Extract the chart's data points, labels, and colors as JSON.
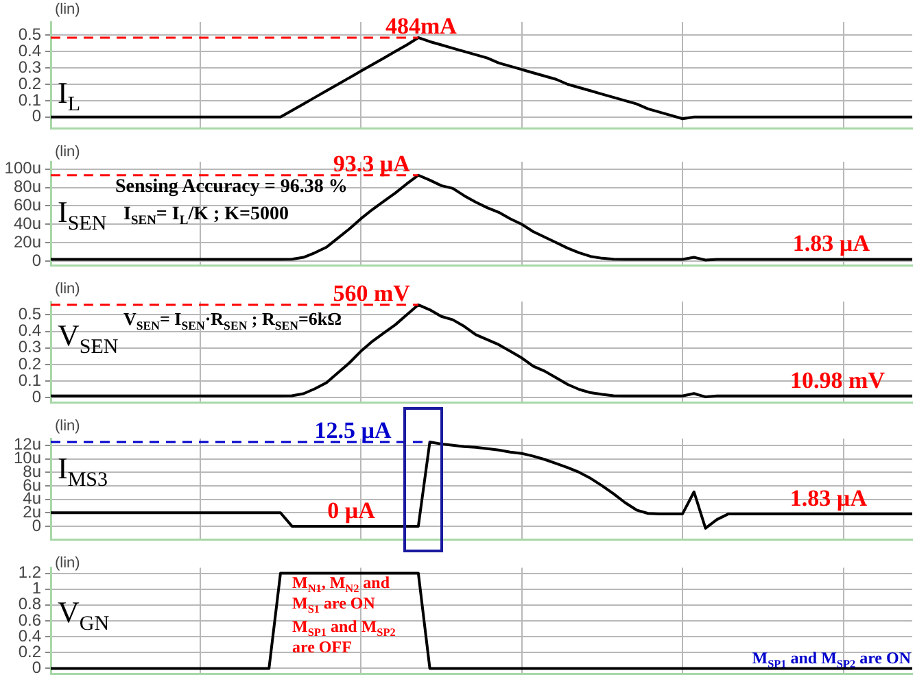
{
  "chart_data": [
    {
      "type": "line",
      "ylabel": "I$_{L}$",
      "categories": [
        null,
        null,
        null,
        null,
        null,
        null,
        null,
        null,
        null,
        null,
        null,
        null,
        null,
        null,
        null,
        null,
        null,
        null,
        null,
        null,
        null,
        null,
        null,
        null,
        null,
        null,
        null,
        null,
        null,
        null,
        null,
        null,
        null,
        null,
        null,
        null,
        null,
        null,
        null,
        null,
        null,
        null,
        null,
        null,
        null,
        null,
        null,
        null,
        null,
        null,
        null,
        null,
        null,
        null,
        null,
        null,
        null,
        null,
        null,
        null,
        null,
        null,
        null,
        null,
        null,
        null,
        null,
        null,
        null,
        null,
        null,
        null,
        null,
        null,
        null,
        null
      ],
      "series": [
        {
          "color": "#000000",
          "values": [
            0,
            0,
            0,
            0,
            0,
            0,
            0,
            0,
            0,
            0,
            0,
            0,
            0,
            0,
            0,
            0,
            0,
            0,
            0,
            0,
            0,
            0.04,
            0.08,
            0.12,
            0.16,
            0.2,
            0.24,
            0.28,
            0.32,
            0.36,
            0.4,
            0.44,
            0.484,
            0.46,
            0.44,
            0.42,
            0.4,
            0.38,
            0.36,
            0.33,
            0.31,
            0.29,
            0.27,
            0.25,
            0.23,
            0.2,
            0.18,
            0.16,
            0.14,
            0.12,
            0.1,
            0.08,
            0.05,
            0.03,
            0.01,
            -0.01,
            0,
            0,
            0,
            0,
            0,
            0,
            0,
            0,
            0,
            0,
            0,
            0,
            0,
            0,
            0,
            0,
            0,
            0,
            0,
            0
          ]
        }
      ],
      "ylim": [
        -0.07,
        0.58
      ],
      "yticks": [
        0,
        0.1,
        0.2,
        0.3,
        0.4,
        0.5
      ],
      "tick_labels": "y",
      "grid": true,
      "legend": false,
      "marker": "none",
      "line_style": "solid",
      "ref_lines": [
        {
          "axis": "y",
          "value": 0.484,
          "label": "484mA",
          "color": "#ff0000",
          "line_style": "dashed"
        }
      ],
      "annotations": [
        "(lin)"
      ]
    },
    {
      "type": "line",
      "ylabel": "I$_{SEN}$",
      "categories": [
        null,
        null,
        null,
        null,
        null,
        null,
        null,
        null,
        null,
        null,
        null,
        null,
        null,
        null,
        null,
        null,
        null,
        null,
        null,
        null,
        null,
        null,
        null,
        null,
        null,
        null,
        null,
        null,
        null,
        null,
        null,
        null,
        null,
        null,
        null,
        null,
        null,
        null,
        null,
        null,
        null,
        null,
        null,
        null,
        null,
        null,
        null,
        null,
        null,
        null,
        null,
        null,
        null,
        null,
        null,
        null,
        null,
        null,
        null,
        null,
        null,
        null,
        null,
        null,
        null,
        null,
        null,
        null,
        null,
        null,
        null,
        null,
        null,
        null,
        null,
        null
      ],
      "series": [
        {
          "color": "#000000",
          "values": [
            1.83,
            1.83,
            1.83,
            1.83,
            1.83,
            1.83,
            1.83,
            1.83,
            1.83,
            1.83,
            1.83,
            1.83,
            1.83,
            1.83,
            1.83,
            1.83,
            1.83,
            1.83,
            1.83,
            1.83,
            1.83,
            2,
            4,
            9,
            15,
            25,
            35,
            46,
            56,
            65,
            74,
            84,
            93.3,
            88,
            82,
            79,
            71,
            64,
            58,
            53,
            46,
            40,
            32,
            26,
            20,
            14,
            9,
            5,
            3,
            2,
            1.83,
            1.83,
            1.83,
            1.83,
            1.83,
            1.83,
            4,
            1,
            1.83,
            1.83,
            1.83,
            1.83,
            1.83,
            1.83,
            1.83,
            1.83,
            1.83,
            1.83,
            1.83,
            1.83,
            1.83,
            1.83,
            1.83,
            1.83,
            1.83,
            1.83
          ]
        }
      ],
      "ylim": [
        -5,
        108
      ],
      "yticks": [
        {
          "value": 0,
          "label": "0"
        },
        {
          "value": 20,
          "label": "20u"
        },
        {
          "value": 40,
          "label": "40u"
        },
        {
          "value": 60,
          "label": "60u"
        },
        {
          "value": 80,
          "label": "80u"
        },
        {
          "value": 100,
          "label": "100u"
        }
      ],
      "tick_labels": "y",
      "grid": true,
      "legend": false,
      "marker": "none",
      "line_style": "solid",
      "ref_lines": [
        {
          "axis": "y",
          "value": 93.3,
          "label": "93.3 µA",
          "color": "#ff0000",
          "line_style": "dashed"
        }
      ],
      "annotations": [
        "(lin)",
        "Sensing Accuracy = 96.38 %",
        "I$_{SEN}$= I$_{L}$/K ; K=5000",
        {
          "text": "1.83 µA",
          "y": 1.83
        }
      ]
    },
    {
      "type": "line",
      "ylabel": "V$_{SEN}$",
      "categories": [
        null,
        null,
        null,
        null,
        null,
        null,
        null,
        null,
        null,
        null,
        null,
        null,
        null,
        null,
        null,
        null,
        null,
        null,
        null,
        null,
        null,
        null,
        null,
        null,
        null,
        null,
        null,
        null,
        null,
        null,
        null,
        null,
        null,
        null,
        null,
        null,
        null,
        null,
        null,
        null,
        null,
        null,
        null,
        null,
        null,
        null,
        null,
        null,
        null,
        null,
        null,
        null,
        null,
        null,
        null,
        null,
        null,
        null,
        null,
        null,
        null,
        null,
        null,
        null,
        null,
        null,
        null,
        null,
        null,
        null,
        null,
        null,
        null,
        null,
        null,
        null
      ],
      "series": [
        {
          "color": "#000000",
          "values": [
            0.011,
            0.011,
            0.011,
            0.011,
            0.011,
            0.011,
            0.011,
            0.011,
            0.011,
            0.011,
            0.011,
            0.011,
            0.011,
            0.011,
            0.011,
            0.011,
            0.011,
            0.011,
            0.011,
            0.011,
            0.011,
            0.012,
            0.024,
            0.054,
            0.09,
            0.15,
            0.21,
            0.28,
            0.34,
            0.39,
            0.44,
            0.5,
            0.56,
            0.53,
            0.49,
            0.47,
            0.43,
            0.38,
            0.35,
            0.32,
            0.28,
            0.24,
            0.19,
            0.16,
            0.12,
            0.08,
            0.05,
            0.03,
            0.02,
            0.012,
            0.011,
            0.011,
            0.011,
            0.011,
            0.011,
            0.011,
            0.025,
            0.005,
            0.011,
            0.011,
            0.011,
            0.011,
            0.011,
            0.011,
            0.011,
            0.011,
            0.011,
            0.011,
            0.011,
            0.011,
            0.011,
            0.011,
            0.011,
            0.011,
            0.011,
            0.011
          ]
        }
      ],
      "ylim": [
        -0.03,
        0.58
      ],
      "yticks": [
        0,
        0.1,
        0.2,
        0.3,
        0.4,
        0.5
      ],
      "tick_labels": "y",
      "grid": true,
      "legend": false,
      "marker": "none",
      "line_style": "solid",
      "ref_lines": [
        {
          "axis": "y",
          "value": 0.56,
          "label": "560 mV",
          "color": "#ff0000",
          "line_style": "dashed"
        }
      ],
      "annotations": [
        "(lin)",
        "V$_{SEN}$= I$_{SEN}$·R$_{SEN}$ ; R$_{SEN}$=6kΩ",
        {
          "text": "10.98 mV",
          "y": 0.011
        }
      ]
    },
    {
      "type": "line",
      "ylabel": "I$_{MS3}$",
      "categories": [
        null,
        null,
        null,
        null,
        null,
        null,
        null,
        null,
        null,
        null,
        null,
        null,
        null,
        null,
        null,
        null,
        null,
        null,
        null,
        null,
        null,
        null,
        null,
        null,
        null,
        null,
        null,
        null,
        null,
        null,
        null,
        null,
        null,
        null,
        null,
        null,
        null,
        null,
        null,
        null,
        null,
        null,
        null,
        null,
        null,
        null,
        null,
        null,
        null,
        null,
        null,
        null,
        null,
        null,
        null,
        null,
        null,
        null,
        null,
        null,
        null,
        null,
        null,
        null,
        null,
        null,
        null,
        null,
        null,
        null,
        null,
        null,
        null,
        null,
        null,
        null
      ],
      "series": [
        {
          "color": "#000000",
          "values": [
            2,
            2,
            2,
            2,
            2,
            2,
            2,
            2,
            2,
            2,
            2,
            2,
            2,
            2,
            2,
            2,
            2,
            2,
            2,
            2,
            2,
            0,
            0,
            0,
            0,
            0,
            0,
            0,
            0,
            0,
            0,
            0,
            0,
            12.5,
            12.2,
            12.0,
            11.8,
            11.7,
            11.5,
            11.3,
            11.0,
            10.8,
            10.4,
            9.9,
            9.3,
            8.7,
            8.0,
            7.1,
            6.0,
            4.8,
            3.5,
            2.4,
            1.9,
            1.83,
            1.83,
            1.83,
            5.1,
            -0.3,
            1.0,
            1.83,
            1.83,
            1.83,
            1.83,
            1.83,
            1.83,
            1.83,
            1.83,
            1.83,
            1.83,
            1.83,
            1.83,
            1.83,
            1.83,
            1.83,
            1.83,
            1.83
          ]
        }
      ],
      "ylim": [
        -2,
        13
      ],
      "yticks": [
        {
          "value": 0,
          "label": "0"
        },
        {
          "value": 2,
          "label": "2u"
        },
        {
          "value": 4,
          "label": "4u"
        },
        {
          "value": 6,
          "label": "6u"
        },
        {
          "value": 8,
          "label": "8u"
        },
        {
          "value": 10,
          "label": "10u"
        },
        {
          "value": 12,
          "label": "12u"
        }
      ],
      "tick_labels": "y",
      "grid": true,
      "legend": false,
      "marker": "none",
      "line_style": "solid",
      "ref_lines": [
        {
          "axis": "y",
          "value": 12.5,
          "label": "12.5 µA",
          "color": "#0000cc",
          "line_style": "dashed"
        }
      ],
      "annotations": [
        "(lin)",
        {
          "text": "0 µA",
          "y": 0
        },
        {
          "text": "1.83 µA",
          "y": 1.83
        }
      ]
    },
    {
      "type": "line",
      "ylabel": "V$_{GN}$",
      "categories": [
        null,
        null,
        null,
        null,
        null,
        null,
        null,
        null,
        null,
        null,
        null,
        null,
        null,
        null,
        null,
        null,
        null,
        null,
        null,
        null,
        null,
        null,
        null,
        null,
        null,
        null,
        null,
        null,
        null,
        null,
        null,
        null,
        null,
        null,
        null,
        null,
        null,
        null,
        null,
        null,
        null,
        null,
        null,
        null,
        null,
        null,
        null,
        null,
        null,
        null,
        null,
        null,
        null,
        null,
        null,
        null,
        null,
        null,
        null,
        null,
        null,
        null,
        null,
        null,
        null,
        null,
        null,
        null,
        null,
        null,
        null,
        null,
        null,
        null,
        null,
        null
      ],
      "series": [
        {
          "color": "#000000",
          "values": [
            0,
            0,
            0,
            0,
            0,
            0,
            0,
            0,
            0,
            0,
            0,
            0,
            0,
            0,
            0,
            0,
            0,
            0,
            0,
            0,
            1.2,
            1.2,
            1.2,
            1.2,
            1.2,
            1.2,
            1.2,
            1.2,
            1.2,
            1.2,
            1.2,
            1.2,
            1.2,
            0,
            0,
            0,
            0,
            0,
            0,
            0,
            0,
            0,
            0,
            0,
            0,
            0,
            0,
            0,
            0,
            0,
            0,
            0,
            0,
            0,
            0,
            0,
            0,
            0,
            0,
            0,
            0,
            0,
            0,
            0,
            0,
            0,
            0,
            0,
            0,
            0,
            0,
            0,
            0,
            0,
            0,
            0
          ]
        }
      ],
      "ylim": [
        -0.07,
        1.27
      ],
      "yticks": [
        0,
        0.2,
        0.4,
        0.6,
        0.8,
        1,
        1.2
      ],
      "tick_labels": "y",
      "grid": true,
      "legend": false,
      "marker": "none",
      "line_style": "solid",
      "annotations": [
        "(lin)",
        "M$_{N1}$, M$_{N2}$ and M$_{S1}$ are ON",
        "M$_{SP1}$ and M$_{SP2}$ are OFF",
        "M$_{SP1}$ and M$_{SP2}$ are ON"
      ]
    }
  ]
}
